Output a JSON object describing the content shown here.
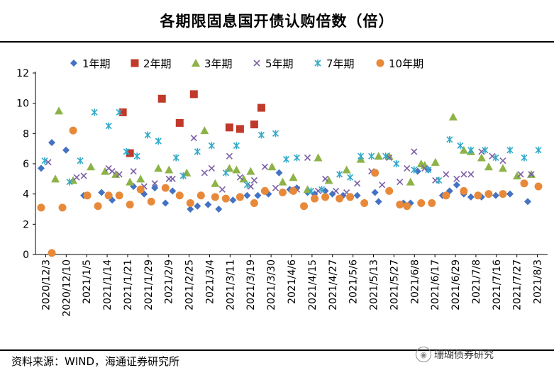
{
  "title": "各期限固息国开债认购倍数（倍）",
  "source": "资料来源：WIND，海通证券研究所",
  "watermark": "珊瑚债券研究",
  "chart_data": {
    "type": "scatter",
    "title": "各期限固息国开债认购倍数（倍）",
    "xlabel": "",
    "ylabel": "",
    "ylim": [
      0,
      12
    ],
    "yticks": [
      "0",
      "2",
      "4",
      "6",
      "8",
      "10",
      "12"
    ],
    "xtick_labels": [
      "2020/12/3",
      "2020/12/10",
      "2021/1/5",
      "2021/1/14",
      "2021/1/21",
      "2021/1/29",
      "2021/2/9",
      "2021/2/25",
      "2021/3/4",
      "2021/3/11",
      "2021/3/19",
      "2021/3/30",
      "2021/4/6",
      "2021/4/15",
      "2021/4/27",
      "2021/5/6",
      "2021/5/13",
      "2021/5/27",
      "2021/6/8",
      "2021/6/17",
      "2021/6/29",
      "2021/7/8",
      "2021/7/16",
      "2021/7/27",
      "2021/8/3"
    ],
    "x_count": 76,
    "legend_position": "top",
    "grid": false,
    "series": [
      {
        "name": "1年期",
        "marker": "diamond",
        "color": "#4472C4",
        "x": [
          0,
          3,
          7,
          12,
          17,
          20,
          26,
          29,
          32,
          35,
          37,
          42,
          44,
          47,
          50,
          54,
          58,
          61,
          64,
          67,
          70,
          72,
          75,
          77,
          80,
          82,
          85,
          89,
          94,
          95,
          102,
          104,
          106,
          109,
          113,
          115,
          117,
          119,
          121,
          124,
          126,
          128,
          132,
          137
        ],
        "y": [
          5.7,
          7.4,
          6.9,
          3.9,
          4.1,
          3.6,
          4.5,
          4.0,
          4.4,
          3.4,
          4.2,
          3.0,
          3.2,
          3.3,
          3.0,
          3.6,
          3.9,
          3.9,
          4.0,
          5.4,
          4.3,
          4.4,
          4.1,
          4.0,
          4.2,
          4.0,
          3.9,
          3.9,
          4.1,
          3.5,
          3.4,
          3.4,
          5.5,
          5.6,
          3.9,
          4.2,
          4.6,
          4.0,
          3.8,
          3.8,
          4.0,
          3.9,
          4.0,
          3.5
        ]
      },
      {
        "name": "2年期",
        "marker": "square",
        "color": "#C0392B",
        "x": [
          23,
          25,
          34,
          39,
          43,
          53,
          56,
          60,
          62
        ],
        "y": [
          9.4,
          6.7,
          10.3,
          8.7,
          10.6,
          8.4,
          8.3,
          8.6,
          9.7
        ]
      },
      {
        "name": "3年期",
        "marker": "triangle",
        "color": "#8DB347",
        "x": [
          4,
          5,
          9,
          14,
          18,
          21,
          25,
          28,
          33,
          36,
          41,
          46,
          49,
          53,
          55,
          57,
          59,
          65,
          68,
          71,
          75,
          78,
          81,
          86,
          90,
          95,
          98,
          104,
          107,
          108,
          111,
          116,
          119,
          121,
          124,
          126,
          130,
          134,
          138
        ],
        "y": [
          5.0,
          9.5,
          4.9,
          5.8,
          5.5,
          5.3,
          4.8,
          5.0,
          5.7,
          5.6,
          5.4,
          8.2,
          4.7,
          5.7,
          5.6,
          5.0,
          5.5,
          5.8,
          4.8,
          5.1,
          4.3,
          6.4,
          4.9,
          5.6,
          6.3,
          6.5,
          6.5,
          4.8,
          6.0,
          5.9,
          6.1,
          9.1,
          6.9,
          6.8,
          6.4,
          5.8,
          5.7,
          5.2,
          5.3
        ]
      },
      {
        "name": "5年期",
        "marker": "x",
        "color": "#7B5EA7",
        "x": [
          2,
          10,
          12,
          19,
          20,
          22,
          26,
          29,
          32,
          36,
          37,
          40,
          43,
          46,
          48,
          51,
          53,
          56,
          59,
          60,
          63,
          66,
          72,
          75,
          78,
          80,
          83,
          86,
          89,
          93,
          96,
          98,
          101,
          103,
          105,
          108,
          111,
          114,
          117,
          119,
          121,
          124,
          127,
          130,
          135,
          138
        ],
        "y": [
          6.1,
          5.1,
          5.2,
          5.7,
          5.5,
          5.3,
          5.5,
          4.5,
          4.7,
          5.0,
          5.0,
          5.2,
          7.7,
          5.4,
          5.7,
          4.3,
          6.5,
          5.1,
          4.5,
          4.9,
          5.8,
          4.4,
          4.3,
          6.4,
          4.2,
          5.0,
          4.2,
          4.1,
          4.7,
          5.5,
          4.6,
          6.4,
          4.8,
          5.7,
          6.8,
          5.7,
          4.9,
          5.3,
          5.0,
          5.3,
          5.3,
          6.8,
          6.5,
          6.2,
          5.3,
          5.3
        ]
      },
      {
        "name": "7年期",
        "marker": "asterisk",
        "color": "#31A9C8",
        "x": [
          1,
          8,
          11,
          15,
          19,
          22,
          24,
          27,
          30,
          33,
          38,
          40,
          44,
          48,
          52,
          55,
          58,
          62,
          66,
          69,
          72,
          76,
          79,
          84,
          87,
          90,
          93,
          97,
          100,
          105,
          109,
          112,
          115,
          118,
          121,
          125,
          128,
          132,
          136,
          140
        ],
        "y": [
          6.2,
          4.8,
          6.2,
          9.4,
          8.5,
          9.4,
          6.8,
          6.5,
          7.9,
          7.5,
          6.4,
          5.2,
          6.8,
          7.2,
          5.4,
          7.2,
          4.6,
          7.9,
          8.0,
          6.3,
          6.4,
          4.2,
          4.3,
          5.3,
          5.1,
          6.5,
          6.5,
          6.5,
          6.0,
          5.6,
          5.6,
          4.9,
          7.6,
          7.2,
          6.9,
          6.9,
          6.4,
          6.9,
          6.4,
          6.9
        ]
      },
      {
        "name": "10年期",
        "marker": "circle",
        "color": "#E8893A",
        "x": [
          0,
          3,
          6,
          9,
          13,
          16,
          19,
          22,
          25,
          28,
          31,
          35,
          39,
          42,
          45,
          49,
          52,
          56,
          60,
          63,
          68,
          71,
          74,
          77,
          80,
          84,
          87,
          91,
          94,
          98,
          101,
          103,
          107,
          110,
          114,
          119,
          123,
          126,
          130,
          136,
          140
        ],
        "y": [
          3.1,
          0.1,
          3.1,
          8.2,
          3.9,
          3.2,
          3.9,
          3.9,
          3.3,
          4.3,
          3.5,
          4.4,
          3.9,
          3.4,
          3.9,
          3.8,
          3.7,
          3.8,
          3.4,
          4.2,
          4.1,
          4.2,
          3.2,
          3.7,
          3.8,
          3.7,
          3.8,
          3.4,
          5.4,
          4.2,
          3.3,
          3.2,
          3.4,
          3.4,
          3.9,
          4.2,
          3.9,
          4.0,
          4.0,
          4.7,
          4.5
        ]
      }
    ]
  }
}
